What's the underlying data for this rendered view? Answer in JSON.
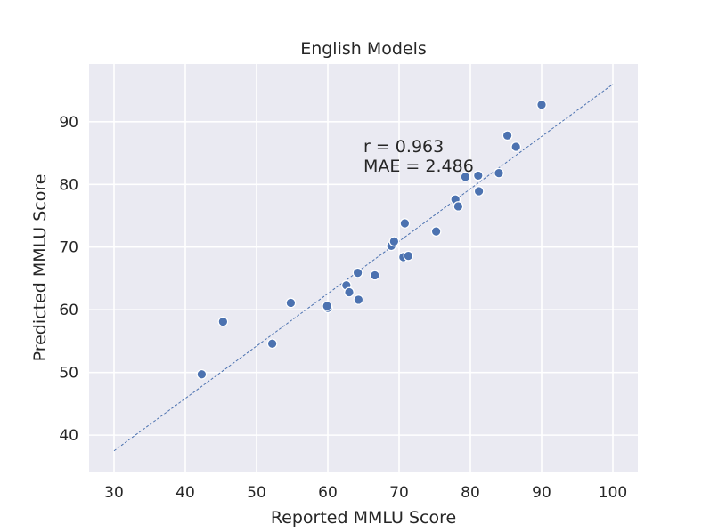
{
  "chart_data": {
    "type": "scatter",
    "title": "English Models",
    "xlabel": "Reported MMLU Score",
    "ylabel": "Predicted MMLU Score",
    "xlim": [
      26.5,
      103.5
    ],
    "ylim": [
      34.2,
      99.2
    ],
    "xticks": [
      30,
      40,
      50,
      60,
      70,
      80,
      90,
      100
    ],
    "yticks": [
      40,
      50,
      60,
      70,
      80,
      90
    ],
    "grid": true,
    "annotations": [
      "r = 0.963",
      "MAE = 2.486"
    ],
    "fit_line": {
      "x": [
        30,
        100
      ],
      "y": [
        37.5,
        96.0
      ]
    },
    "points": [
      {
        "x": 42.3,
        "y": 49.7
      },
      {
        "x": 45.3,
        "y": 58.1
      },
      {
        "x": 52.2,
        "y": 54.6
      },
      {
        "x": 54.8,
        "y": 61.1
      },
      {
        "x": 60.0,
        "y": 60.3
      },
      {
        "x": 59.9,
        "y": 60.6
      },
      {
        "x": 62.6,
        "y": 63.9
      },
      {
        "x": 63.0,
        "y": 62.8
      },
      {
        "x": 64.2,
        "y": 65.9
      },
      {
        "x": 64.3,
        "y": 61.6
      },
      {
        "x": 66.6,
        "y": 65.5
      },
      {
        "x": 68.9,
        "y": 70.2
      },
      {
        "x": 69.3,
        "y": 70.9
      },
      {
        "x": 70.6,
        "y": 68.4
      },
      {
        "x": 71.3,
        "y": 68.6
      },
      {
        "x": 70.8,
        "y": 73.8
      },
      {
        "x": 75.2,
        "y": 72.5
      },
      {
        "x": 77.9,
        "y": 77.6
      },
      {
        "x": 78.3,
        "y": 76.5
      },
      {
        "x": 79.3,
        "y": 81.2
      },
      {
        "x": 81.1,
        "y": 81.4
      },
      {
        "x": 81.2,
        "y": 78.9
      },
      {
        "x": 84.0,
        "y": 81.8
      },
      {
        "x": 85.2,
        "y": 87.8
      },
      {
        "x": 86.4,
        "y": 86.0
      },
      {
        "x": 90.0,
        "y": 92.7
      }
    ]
  }
}
